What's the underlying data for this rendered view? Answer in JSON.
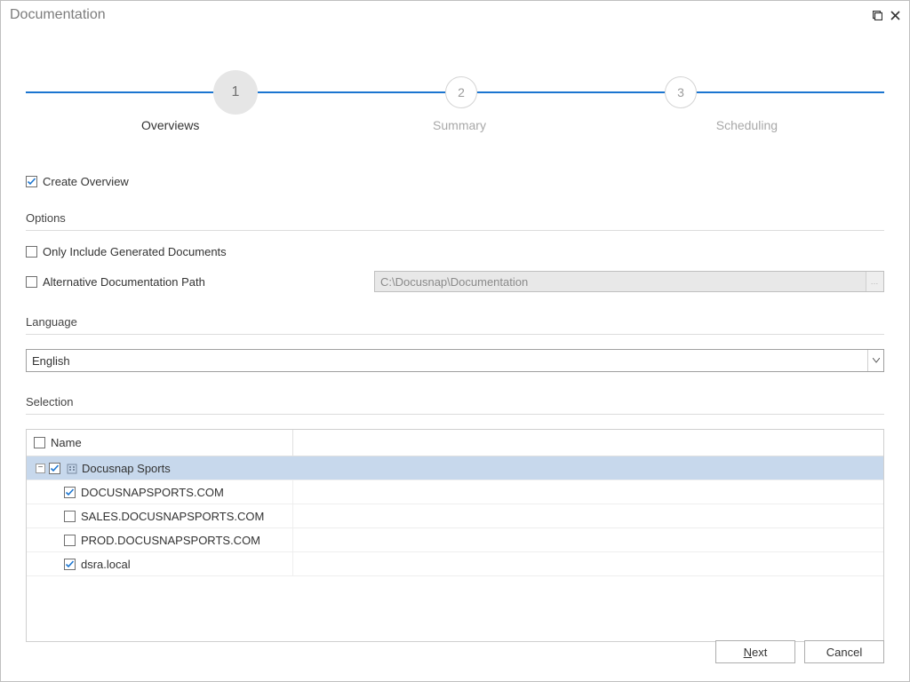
{
  "window": {
    "title": "Documentation"
  },
  "stepper": {
    "accent_color": "#1b75d0",
    "steps": [
      {
        "num": "1",
        "label": "Overviews",
        "active": true
      },
      {
        "num": "2",
        "label": "Summary",
        "active": false
      },
      {
        "num": "3",
        "label": "Scheduling",
        "active": false
      }
    ]
  },
  "create_overview": {
    "label": "Create Overview",
    "checked": true
  },
  "options": {
    "header": "Options",
    "only_include": {
      "label": "Only Include Generated Documents",
      "checked": false
    },
    "alt_path": {
      "label": "Alternative Documentation Path",
      "checked": false,
      "value": "C:\\Docusnap\\Documentation"
    }
  },
  "language": {
    "header": "Language",
    "selected": "English"
  },
  "selection": {
    "header": "Selection",
    "column_header": "Name",
    "header_checked": false,
    "rows": [
      {
        "indent": 10,
        "expander": "-",
        "checked": true,
        "icon": "building",
        "label": "Docusnap Sports",
        "selected": true
      },
      {
        "indent": 42,
        "checked": true,
        "label": "DOCUSNAPSPORTS.COM"
      },
      {
        "indent": 42,
        "checked": false,
        "label": "SALES.DOCUSNAPSPORTS.COM"
      },
      {
        "indent": 42,
        "checked": false,
        "label": "PROD.DOCUSNAPSPORTS.COM"
      },
      {
        "indent": 42,
        "checked": true,
        "label": "dsra.local"
      }
    ]
  },
  "buttons": {
    "next": "Next",
    "cancel": "Cancel"
  }
}
